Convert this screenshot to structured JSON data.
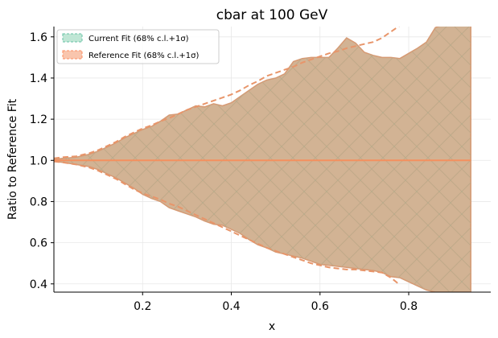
{
  "chart_data": {
    "type": "area",
    "title": "cbar at 100 GeV",
    "xlabel": "x",
    "ylabel": "Ratio to Reference Fit",
    "xlim": [
      0.0,
      0.985
    ],
    "ylim": [
      0.36,
      1.65
    ],
    "xticks": [
      "0.2",
      "0.4",
      "0.6",
      "0.8"
    ],
    "xtick_values": [
      0.2,
      0.4,
      0.6,
      0.8
    ],
    "yticks": [
      "0.4",
      "0.6",
      "0.8",
      "1.0",
      "1.2",
      "1.4",
      "1.6"
    ],
    "ytick_values": [
      0.4,
      0.6,
      0.8,
      1.0,
      1.2,
      1.4,
      1.6
    ],
    "grid": true,
    "legend_position": "top-left",
    "series": [
      {
        "name": "Current Fit (68% c.l.+1σ)",
        "color": "#66c2a5",
        "fill": "#d2b394",
        "x": [
          0.0,
          0.02,
          0.05,
          0.08,
          0.1,
          0.12,
          0.14,
          0.16,
          0.18,
          0.2,
          0.22,
          0.24,
          0.26,
          0.28,
          0.3,
          0.32,
          0.34,
          0.36,
          0.38,
          0.4,
          0.42,
          0.44,
          0.46,
          0.48,
          0.5,
          0.52,
          0.54,
          0.56,
          0.58,
          0.6,
          0.62,
          0.64,
          0.66,
          0.68,
          0.7,
          0.72,
          0.74,
          0.76,
          0.78,
          0.8,
          0.82,
          0.84,
          0.86,
          0.88,
          0.9,
          0.92,
          0.94
        ],
        "upper": [
          1.005,
          1.01,
          1.015,
          1.03,
          1.045,
          1.065,
          1.085,
          1.11,
          1.13,
          1.15,
          1.165,
          1.19,
          1.22,
          1.225,
          1.245,
          1.265,
          1.26,
          1.275,
          1.265,
          1.28,
          1.31,
          1.34,
          1.37,
          1.39,
          1.4,
          1.42,
          1.48,
          1.495,
          1.5,
          1.5,
          1.5,
          1.545,
          1.595,
          1.57,
          1.525,
          1.51,
          1.5,
          1.5,
          1.495,
          1.52,
          1.545,
          1.575,
          1.645,
          1.66,
          1.66,
          1.66,
          1.66
        ],
        "lower": [
          0.995,
          0.99,
          0.98,
          0.97,
          0.955,
          0.935,
          0.915,
          0.89,
          0.865,
          0.835,
          0.815,
          0.8,
          0.77,
          0.755,
          0.74,
          0.725,
          0.705,
          0.69,
          0.685,
          0.665,
          0.645,
          0.615,
          0.59,
          0.575,
          0.555,
          0.545,
          0.535,
          0.525,
          0.51,
          0.495,
          0.49,
          0.485,
          0.48,
          0.475,
          0.47,
          0.465,
          0.455,
          0.435,
          0.43,
          0.41,
          0.39,
          0.37,
          0.36,
          0.36,
          0.36,
          0.36,
          0.36
        ],
        "central": [
          1.0,
          1.0,
          1.0,
          1.0,
          1.0,
          1.0,
          1.0,
          1.0,
          1.0,
          1.0,
          1.0,
          1.0,
          1.0,
          1.0,
          1.0,
          1.0,
          1.0,
          1.0,
          1.0,
          1.0,
          1.0,
          1.0,
          1.0,
          1.0,
          1.0,
          1.0,
          1.0,
          1.0,
          1.0,
          1.0,
          1.0,
          1.0,
          1.0,
          1.0,
          1.0,
          1.0,
          1.0,
          1.0,
          1.0,
          1.0,
          1.0,
          1.0,
          1.0,
          1.0,
          1.0,
          1.0,
          1.0
        ]
      },
      {
        "name": "Reference Fit (68% c.l.+1σ)",
        "color": "#fc8d62",
        "line_color": "#e8956a",
        "x_upper": [
          0.0,
          0.02,
          0.05,
          0.08,
          0.1,
          0.12,
          0.14,
          0.16,
          0.18,
          0.2,
          0.22,
          0.24,
          0.26,
          0.28,
          0.3,
          0.32,
          0.34,
          0.36,
          0.38,
          0.4,
          0.42,
          0.44,
          0.46,
          0.48,
          0.5,
          0.52,
          0.54,
          0.56,
          0.58,
          0.6,
          0.62,
          0.64,
          0.66,
          0.68,
          0.7,
          0.72,
          0.74,
          0.76,
          0.78
        ],
        "upper": [
          1.01,
          1.015,
          1.02,
          1.035,
          1.05,
          1.07,
          1.09,
          1.115,
          1.135,
          1.155,
          1.17,
          1.19,
          1.205,
          1.225,
          1.245,
          1.26,
          1.275,
          1.29,
          1.305,
          1.32,
          1.34,
          1.365,
          1.385,
          1.41,
          1.425,
          1.44,
          1.455,
          1.475,
          1.49,
          1.505,
          1.52,
          1.53,
          1.545,
          1.555,
          1.565,
          1.575,
          1.595,
          1.625,
          1.655
        ],
        "x_lower": [
          0.0,
          0.02,
          0.05,
          0.08,
          0.1,
          0.12,
          0.14,
          0.16,
          0.18,
          0.2,
          0.22,
          0.24,
          0.26,
          0.28,
          0.3,
          0.32,
          0.34,
          0.36,
          0.38,
          0.4,
          0.42,
          0.44,
          0.46,
          0.48,
          0.5,
          0.52,
          0.54,
          0.56,
          0.58,
          0.6,
          0.62,
          0.64,
          0.66,
          0.68,
          0.7,
          0.72,
          0.74,
          0.76,
          0.78
        ],
        "lower": [
          0.995,
          0.99,
          0.98,
          0.965,
          0.95,
          0.93,
          0.91,
          0.885,
          0.86,
          0.84,
          0.825,
          0.81,
          0.79,
          0.775,
          0.755,
          0.735,
          0.715,
          0.695,
          0.675,
          0.655,
          0.635,
          0.615,
          0.595,
          0.575,
          0.56,
          0.545,
          0.53,
          0.515,
          0.5,
          0.49,
          0.48,
          0.475,
          0.47,
          0.47,
          0.465,
          0.46,
          0.455,
          0.43,
          0.395
        ],
        "central": 1.0
      }
    ]
  }
}
